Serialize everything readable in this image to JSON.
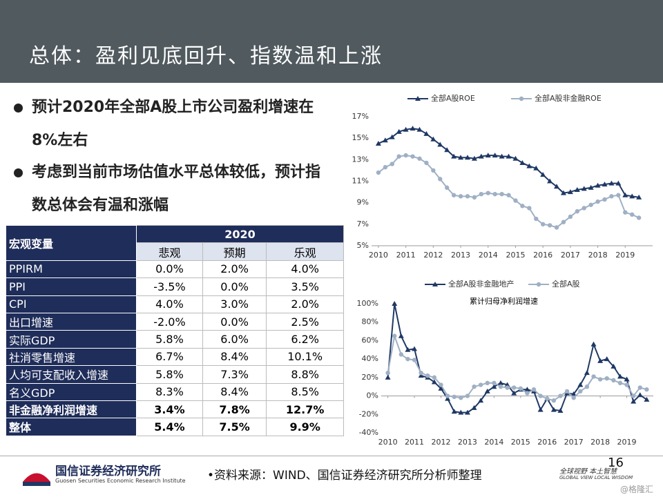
{
  "header": {
    "title": "总体：盈利见底回升、指数温和上涨"
  },
  "bullets": [
    "预计2020年全部A股上市公司盈利增速在8%左右",
    "考虑到当前市场估值水平总体较低，预计指数总体会有温和涨幅"
  ],
  "table": {
    "header": "宏观变量",
    "year": "2020",
    "scenarios": [
      "悲观",
      "预期",
      "乐观"
    ],
    "rows": [
      [
        "PPIRM",
        "0.0%",
        "2.0%",
        "4.0%"
      ],
      [
        "PPI",
        "-3.5%",
        "0.0%",
        "3.5%"
      ],
      [
        "CPI",
        "4.0%",
        "3.0%",
        "2.0%"
      ],
      [
        "出口增速",
        "-2.0%",
        "0.0%",
        "2.5%"
      ],
      [
        "实际GDP",
        "5.8%",
        "6.0%",
        "6.2%"
      ],
      [
        "社消零售增速",
        "6.7%",
        "8.4%",
        "10.1%"
      ],
      [
        "人均可支配收入增速",
        "5.8%",
        "7.3%",
        "8.8%"
      ],
      [
        "名义GDP",
        "8.3%",
        "8.4%",
        "8.5%"
      ],
      [
        "非金融净利润增速",
        "3.4%",
        "7.8%",
        "12.7%"
      ],
      [
        "整体",
        "5.4%",
        "7.5%",
        "9.9%"
      ]
    ]
  },
  "chart_data": [
    {
      "type": "line",
      "x": [
        2010,
        2010.25,
        2010.5,
        2010.75,
        2011,
        2011.25,
        2011.5,
        2011.75,
        2012,
        2012.25,
        2012.5,
        2012.75,
        2013,
        2013.25,
        2013.5,
        2013.75,
        2014,
        2014.25,
        2014.5,
        2014.75,
        2015,
        2015.25,
        2015.5,
        2015.75,
        2016,
        2016.25,
        2016.5,
        2016.75,
        2017,
        2017.25,
        2017.5,
        2017.75,
        2018,
        2018.25,
        2018.5,
        2018.75,
        2019,
        2019.25,
        2019.5
      ],
      "series": [
        {
          "name": "全部A股ROE",
          "color": "#1f3864",
          "marker": "triangle",
          "values": [
            14.5,
            14.8,
            15.1,
            15.6,
            15.8,
            15.9,
            15.8,
            15.4,
            14.9,
            14.4,
            13.9,
            13.3,
            13.2,
            13.2,
            13.1,
            13.3,
            13.4,
            13.4,
            13.3,
            13.3,
            13.1,
            12.7,
            12.4,
            12.2,
            11.6,
            11.0,
            10.5,
            9.9,
            10.0,
            10.2,
            10.3,
            10.4,
            10.6,
            10.7,
            10.8,
            10.8,
            9.7,
            9.6,
            9.5
          ]
        },
        {
          "name": "全部A股非金融ROE",
          "color": "#9fb0c4",
          "marker": "circle",
          "values": [
            11.8,
            12.3,
            12.6,
            13.3,
            13.4,
            13.3,
            13.1,
            12.7,
            12.0,
            11.2,
            10.4,
            9.7,
            9.6,
            9.6,
            9.5,
            9.8,
            9.9,
            9.8,
            9.8,
            9.7,
            9.2,
            8.7,
            8.5,
            7.5,
            7.0,
            6.9,
            6.7,
            7.2,
            7.7,
            8.2,
            8.5,
            8.8,
            9.1,
            9.3,
            9.6,
            9.7,
            8.1,
            7.9,
            7.6
          ]
        }
      ],
      "xlim": [
        2009.75,
        2020
      ],
      "xticks": [
        2010,
        2011,
        2012,
        2013,
        2014,
        2015,
        2016,
        2017,
        2018,
        2019
      ],
      "ylim": [
        5,
        17
      ],
      "yticks": [
        {
          "value": 5,
          "label": "5%"
        },
        {
          "value": 7,
          "label": "7%"
        },
        {
          "value": 9,
          "label": "9%"
        },
        {
          "value": 11,
          "label": "11%"
        },
        {
          "value": 13,
          "label": "13%"
        },
        {
          "value": 15,
          "label": "15%"
        },
        {
          "value": 17,
          "label": "17%"
        }
      ],
      "legend": "top"
    },
    {
      "type": "line",
      "annotation": "累计归母净利润增速",
      "x": [
        2010,
        2010.25,
        2010.5,
        2010.75,
        2011,
        2011.25,
        2011.5,
        2011.75,
        2012,
        2012.25,
        2012.5,
        2012.75,
        2013,
        2013.25,
        2013.5,
        2013.75,
        2014,
        2014.25,
        2014.5,
        2014.75,
        2015,
        2015.25,
        2015.5,
        2015.75,
        2016,
        2016.25,
        2016.5,
        2016.75,
        2017,
        2017.25,
        2017.5,
        2017.75,
        2018,
        2018.25,
        2018.5,
        2018.75,
        2019,
        2019.25,
        2019.5,
        2019.75
      ],
      "series": [
        {
          "name": "全部A股非金融地产",
          "color": "#1f3864",
          "marker": "triangle",
          "values": [
            20,
            100,
            65,
            50,
            51,
            22,
            20,
            15,
            8,
            -3,
            -17,
            -18,
            -18,
            -13,
            -5,
            5,
            10,
            14,
            12,
            3,
            7,
            7,
            5,
            -15,
            -3,
            -15,
            -16,
            3,
            2,
            12,
            25,
            56,
            38,
            40,
            32,
            21,
            18,
            -6,
            1,
            -4
          ]
        },
        {
          "name": "全部A股",
          "color": "#9fb0c4",
          "marker": "circle",
          "values": [
            25,
            65,
            45,
            40,
            39,
            25,
            22,
            20,
            12,
            0,
            -1,
            -2,
            0,
            10,
            12,
            14,
            14,
            10,
            9,
            9,
            8,
            3,
            7,
            0,
            -3,
            -5,
            0,
            5,
            -2,
            5,
            10,
            21,
            18,
            19,
            17,
            14,
            12,
            0,
            9,
            7
          ]
        }
      ],
      "xlim": [
        2009.75,
        2020
      ],
      "xticks": [
        2010,
        2011,
        2012,
        2013,
        2014,
        2015,
        2016,
        2017,
        2018,
        2019
      ],
      "ylim": [
        -40,
        100
      ],
      "yticks": [
        {
          "value": -40,
          "label": "-40%"
        },
        {
          "value": -20,
          "label": "-20%"
        },
        {
          "value": 0,
          "label": "0%"
        },
        {
          "value": 20,
          "label": "20%"
        },
        {
          "value": 40,
          "label": "40%"
        },
        {
          "value": 60,
          "label": "60%"
        },
        {
          "value": 80,
          "label": "80%"
        },
        {
          "value": 100,
          "label": "100%"
        }
      ],
      "legend": "top"
    }
  ],
  "footer": {
    "org": "国信证券经济研究所",
    "org_en": "Guosen Securities Economic Research Institute",
    "source": "•资料来源：WIND、国信证券经济研究所分析师整理",
    "page": "16",
    "slogan": "全球视野 本土智慧",
    "slogan_en": "GLOBAL VIEW  LOCAL WISDOM",
    "watermark": "@格隆汇"
  }
}
